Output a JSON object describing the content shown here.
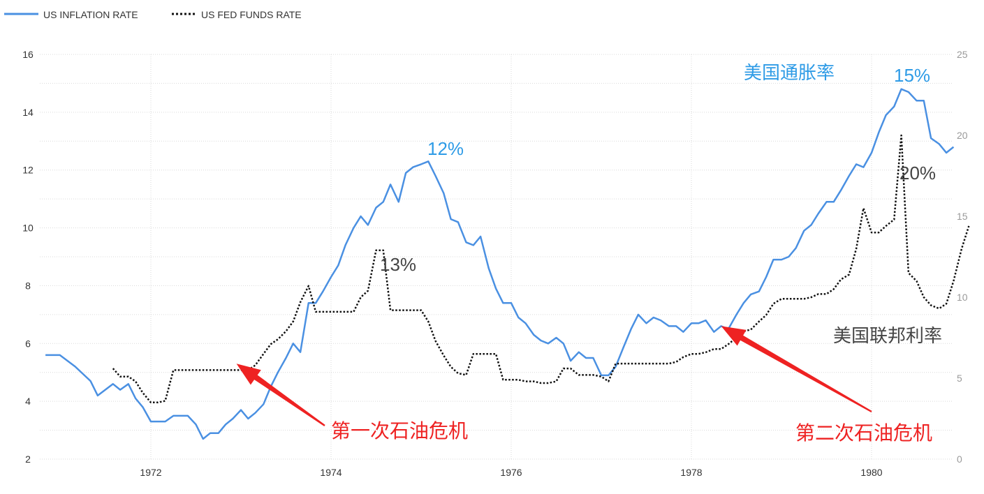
{
  "chart_data": {
    "type": "line",
    "legend": [
      {
        "label": "US INFLATION RATE",
        "style": "solid",
        "color": "#4a90e2"
      },
      {
        "label": "US FED FUNDS RATE",
        "style": "dotted",
        "color": "#111111"
      }
    ],
    "legend_position": "top-left",
    "x_ticks": [
      "1972",
      "1974",
      "1976",
      "1978",
      "1980"
    ],
    "y_left": {
      "range": [
        2,
        16
      ],
      "ticks": [
        "2",
        "4",
        "6",
        "8",
        "10",
        "12",
        "14",
        "16"
      ]
    },
    "y_right": {
      "range": [
        0,
        25
      ],
      "ticks": [
        "0",
        "5",
        "10",
        "15",
        "20",
        "25"
      ]
    },
    "grid": true,
    "series": [
      {
        "name": "US INFLATION RATE",
        "axis": "left",
        "color": "#4a90e2",
        "points": [
          [
            1970.83,
            5.6
          ],
          [
            1970.99,
            5.6
          ],
          [
            1971.16,
            5.2
          ],
          [
            1971.33,
            4.7
          ],
          [
            1971.41,
            4.2
          ],
          [
            1971.58,
            4.6
          ],
          [
            1971.66,
            4.4
          ],
          [
            1971.75,
            4.6
          ],
          [
            1971.83,
            4.1
          ],
          [
            1971.91,
            3.8
          ],
          [
            1972.0,
            3.3
          ],
          [
            1972.16,
            3.3
          ],
          [
            1972.25,
            3.5
          ],
          [
            1972.41,
            3.5
          ],
          [
            1972.5,
            3.2
          ],
          [
            1972.58,
            2.7
          ],
          [
            1972.66,
            2.9
          ],
          [
            1972.75,
            2.9
          ],
          [
            1972.83,
            3.2
          ],
          [
            1972.91,
            3.4
          ],
          [
            1973.0,
            3.7
          ],
          [
            1973.08,
            3.4
          ],
          [
            1973.16,
            3.6
          ],
          [
            1973.25,
            3.9
          ],
          [
            1973.33,
            4.5
          ],
          [
            1973.41,
            5.0
          ],
          [
            1973.5,
            5.5
          ],
          [
            1973.58,
            6.0
          ],
          [
            1973.66,
            5.7
          ],
          [
            1973.75,
            7.4
          ],
          [
            1973.83,
            7.4
          ],
          [
            1973.91,
            7.8
          ],
          [
            1974.0,
            8.3
          ],
          [
            1974.08,
            8.7
          ],
          [
            1974.16,
            9.4
          ],
          [
            1974.25,
            10.0
          ],
          [
            1974.33,
            10.4
          ],
          [
            1974.41,
            10.1
          ],
          [
            1974.5,
            10.7
          ],
          [
            1974.58,
            10.9
          ],
          [
            1974.66,
            11.5
          ],
          [
            1974.75,
            10.9
          ],
          [
            1974.83,
            11.9
          ],
          [
            1974.91,
            12.1
          ],
          [
            1975.0,
            12.2
          ],
          [
            1975.08,
            12.3
          ],
          [
            1975.16,
            11.8
          ],
          [
            1975.25,
            11.2
          ],
          [
            1975.33,
            10.3
          ],
          [
            1975.41,
            10.2
          ],
          [
            1975.5,
            9.5
          ],
          [
            1975.58,
            9.4
          ],
          [
            1975.66,
            9.7
          ],
          [
            1975.75,
            8.6
          ],
          [
            1975.83,
            7.9
          ],
          [
            1975.91,
            7.4
          ],
          [
            1976.0,
            7.4
          ],
          [
            1976.08,
            6.9
          ],
          [
            1976.16,
            6.7
          ],
          [
            1976.25,
            6.3
          ],
          [
            1976.33,
            6.1
          ],
          [
            1976.41,
            6.0
          ],
          [
            1976.5,
            6.2
          ],
          [
            1976.58,
            6.0
          ],
          [
            1976.66,
            5.4
          ],
          [
            1976.75,
            5.7
          ],
          [
            1976.83,
            5.5
          ],
          [
            1976.91,
            5.5
          ],
          [
            1977.0,
            4.9
          ],
          [
            1977.08,
            4.9
          ],
          [
            1977.16,
            5.2
          ],
          [
            1977.25,
            5.9
          ],
          [
            1977.33,
            6.5
          ],
          [
            1977.41,
            7.0
          ],
          [
            1977.5,
            6.7
          ],
          [
            1977.58,
            6.9
          ],
          [
            1977.66,
            6.8
          ],
          [
            1977.75,
            6.6
          ],
          [
            1977.83,
            6.6
          ],
          [
            1977.91,
            6.4
          ],
          [
            1978.0,
            6.7
          ],
          [
            1978.08,
            6.7
          ],
          [
            1978.16,
            6.8
          ],
          [
            1978.25,
            6.4
          ],
          [
            1978.33,
            6.6
          ],
          [
            1978.41,
            6.5
          ],
          [
            1978.5,
            7.0
          ],
          [
            1978.58,
            7.4
          ],
          [
            1978.66,
            7.7
          ],
          [
            1978.75,
            7.8
          ],
          [
            1978.83,
            8.3
          ],
          [
            1978.91,
            8.9
          ],
          [
            1979.0,
            8.9
          ],
          [
            1979.08,
            9.0
          ],
          [
            1979.16,
            9.3
          ],
          [
            1979.25,
            9.9
          ],
          [
            1979.33,
            10.1
          ],
          [
            1979.41,
            10.5
          ],
          [
            1979.5,
            10.9
          ],
          [
            1979.58,
            10.9
          ],
          [
            1979.66,
            11.3
          ],
          [
            1979.75,
            11.8
          ],
          [
            1979.83,
            12.2
          ],
          [
            1979.91,
            12.1
          ],
          [
            1980.0,
            12.6
          ],
          [
            1980.08,
            13.3
          ],
          [
            1980.16,
            13.9
          ],
          [
            1980.25,
            14.2
          ],
          [
            1980.33,
            14.8
          ],
          [
            1980.41,
            14.7
          ],
          [
            1980.5,
            14.4
          ],
          [
            1980.58,
            14.4
          ],
          [
            1980.66,
            13.1
          ],
          [
            1980.75,
            12.9
          ],
          [
            1980.83,
            12.6
          ],
          [
            1980.91,
            12.8
          ]
        ]
      },
      {
        "name": "US FED FUNDS RATE",
        "axis": "right",
        "color": "#111111",
        "points": [
          [
            1971.58,
            5.6
          ],
          [
            1971.66,
            5.1
          ],
          [
            1971.75,
            5.1
          ],
          [
            1971.83,
            4.8
          ],
          [
            1971.91,
            4.1
          ],
          [
            1972.0,
            3.5
          ],
          [
            1972.08,
            3.5
          ],
          [
            1972.16,
            3.6
          ],
          [
            1972.25,
            5.5
          ],
          [
            1972.41,
            5.5
          ],
          [
            1972.58,
            5.5
          ],
          [
            1972.75,
            5.5
          ],
          [
            1972.91,
            5.5
          ],
          [
            1973.0,
            5.5
          ],
          [
            1973.08,
            5.5
          ],
          [
            1973.16,
            5.8
          ],
          [
            1973.25,
            6.5
          ],
          [
            1973.33,
            7.1
          ],
          [
            1973.41,
            7.4
          ],
          [
            1973.5,
            7.9
          ],
          [
            1973.58,
            8.5
          ],
          [
            1973.66,
            9.7
          ],
          [
            1973.75,
            10.7
          ],
          [
            1973.83,
            9.1
          ],
          [
            1973.91,
            9.1
          ],
          [
            1974.0,
            9.1
          ],
          [
            1974.08,
            9.1
          ],
          [
            1974.16,
            9.1
          ],
          [
            1974.25,
            9.1
          ],
          [
            1974.33,
            10.0
          ],
          [
            1974.41,
            10.4
          ],
          [
            1974.5,
            12.9
          ],
          [
            1974.58,
            12.9
          ],
          [
            1974.66,
            9.2
          ],
          [
            1974.75,
            9.2
          ],
          [
            1974.83,
            9.2
          ],
          [
            1974.91,
            9.2
          ],
          [
            1975.0,
            9.2
          ],
          [
            1975.08,
            8.5
          ],
          [
            1975.16,
            7.3
          ],
          [
            1975.25,
            6.4
          ],
          [
            1975.33,
            5.7
          ],
          [
            1975.41,
            5.3
          ],
          [
            1975.5,
            5.2
          ],
          [
            1975.58,
            6.5
          ],
          [
            1975.66,
            6.5
          ],
          [
            1975.75,
            6.5
          ],
          [
            1975.83,
            6.5
          ],
          [
            1975.91,
            4.9
          ],
          [
            1976.0,
            4.9
          ],
          [
            1976.08,
            4.9
          ],
          [
            1976.16,
            4.8
          ],
          [
            1976.25,
            4.8
          ],
          [
            1976.33,
            4.7
          ],
          [
            1976.41,
            4.7
          ],
          [
            1976.5,
            4.8
          ],
          [
            1976.58,
            5.6
          ],
          [
            1976.66,
            5.6
          ],
          [
            1976.75,
            5.2
          ],
          [
            1976.83,
            5.2
          ],
          [
            1976.91,
            5.2
          ],
          [
            1977.0,
            5.1
          ],
          [
            1977.08,
            4.8
          ],
          [
            1977.16,
            5.9
          ],
          [
            1977.25,
            5.9
          ],
          [
            1977.33,
            5.9
          ],
          [
            1977.41,
            5.9
          ],
          [
            1977.5,
            5.9
          ],
          [
            1977.58,
            5.9
          ],
          [
            1977.66,
            5.9
          ],
          [
            1977.75,
            5.9
          ],
          [
            1977.83,
            6.0
          ],
          [
            1977.91,
            6.3
          ],
          [
            1978.0,
            6.5
          ],
          [
            1978.08,
            6.5
          ],
          [
            1978.16,
            6.6
          ],
          [
            1978.25,
            6.8
          ],
          [
            1978.33,
            6.8
          ],
          [
            1978.41,
            7.1
          ],
          [
            1978.5,
            7.5
          ],
          [
            1978.58,
            7.9
          ],
          [
            1978.66,
            8.0
          ],
          [
            1978.75,
            8.5
          ],
          [
            1978.83,
            8.9
          ],
          [
            1978.91,
            9.6
          ],
          [
            1979.0,
            9.9
          ],
          [
            1979.08,
            9.9
          ],
          [
            1979.16,
            9.9
          ],
          [
            1979.25,
            9.9
          ],
          [
            1979.33,
            10.0
          ],
          [
            1979.41,
            10.2
          ],
          [
            1979.5,
            10.2
          ],
          [
            1979.58,
            10.5
          ],
          [
            1979.66,
            11.1
          ],
          [
            1979.75,
            11.4
          ],
          [
            1979.83,
            13.0
          ],
          [
            1979.91,
            15.5
          ],
          [
            1980.0,
            14.0
          ],
          [
            1980.08,
            14.0
          ],
          [
            1980.16,
            14.4
          ],
          [
            1980.25,
            14.8
          ],
          [
            1980.33,
            20.0
          ],
          [
            1980.41,
            11.5
          ],
          [
            1980.5,
            11.0
          ],
          [
            1980.58,
            10.0
          ],
          [
            1980.66,
            9.5
          ],
          [
            1980.75,
            9.3
          ],
          [
            1980.83,
            9.6
          ],
          [
            1980.91,
            11.0
          ],
          [
            1981.0,
            13.0
          ],
          [
            1981.08,
            14.4
          ]
        ]
      }
    ],
    "annotations": [
      {
        "text": "12%",
        "color": "#2e9be6"
      },
      {
        "text": "15%",
        "color": "#2e9be6"
      },
      {
        "text": "美国通胀率",
        "color": "#2e9be6"
      },
      {
        "text": "13%",
        "color": "#444444"
      },
      {
        "text": "20%",
        "color": "#444444"
      },
      {
        "text": "美国联邦利率",
        "color": "#444444"
      },
      {
        "text": "第一次石油危机",
        "color": "#ee2222"
      },
      {
        "text": "第二次石油危机",
        "color": "#ee2222"
      }
    ],
    "arrows": [
      {
        "label_ref": "第一次石油危机",
        "points_to_x": 1972.95,
        "points_to_y_left": 5.3
      },
      {
        "label_ref": "第二次石油危机",
        "points_to_x": 1978.33,
        "points_to_y_left": 6.6
      }
    ]
  }
}
